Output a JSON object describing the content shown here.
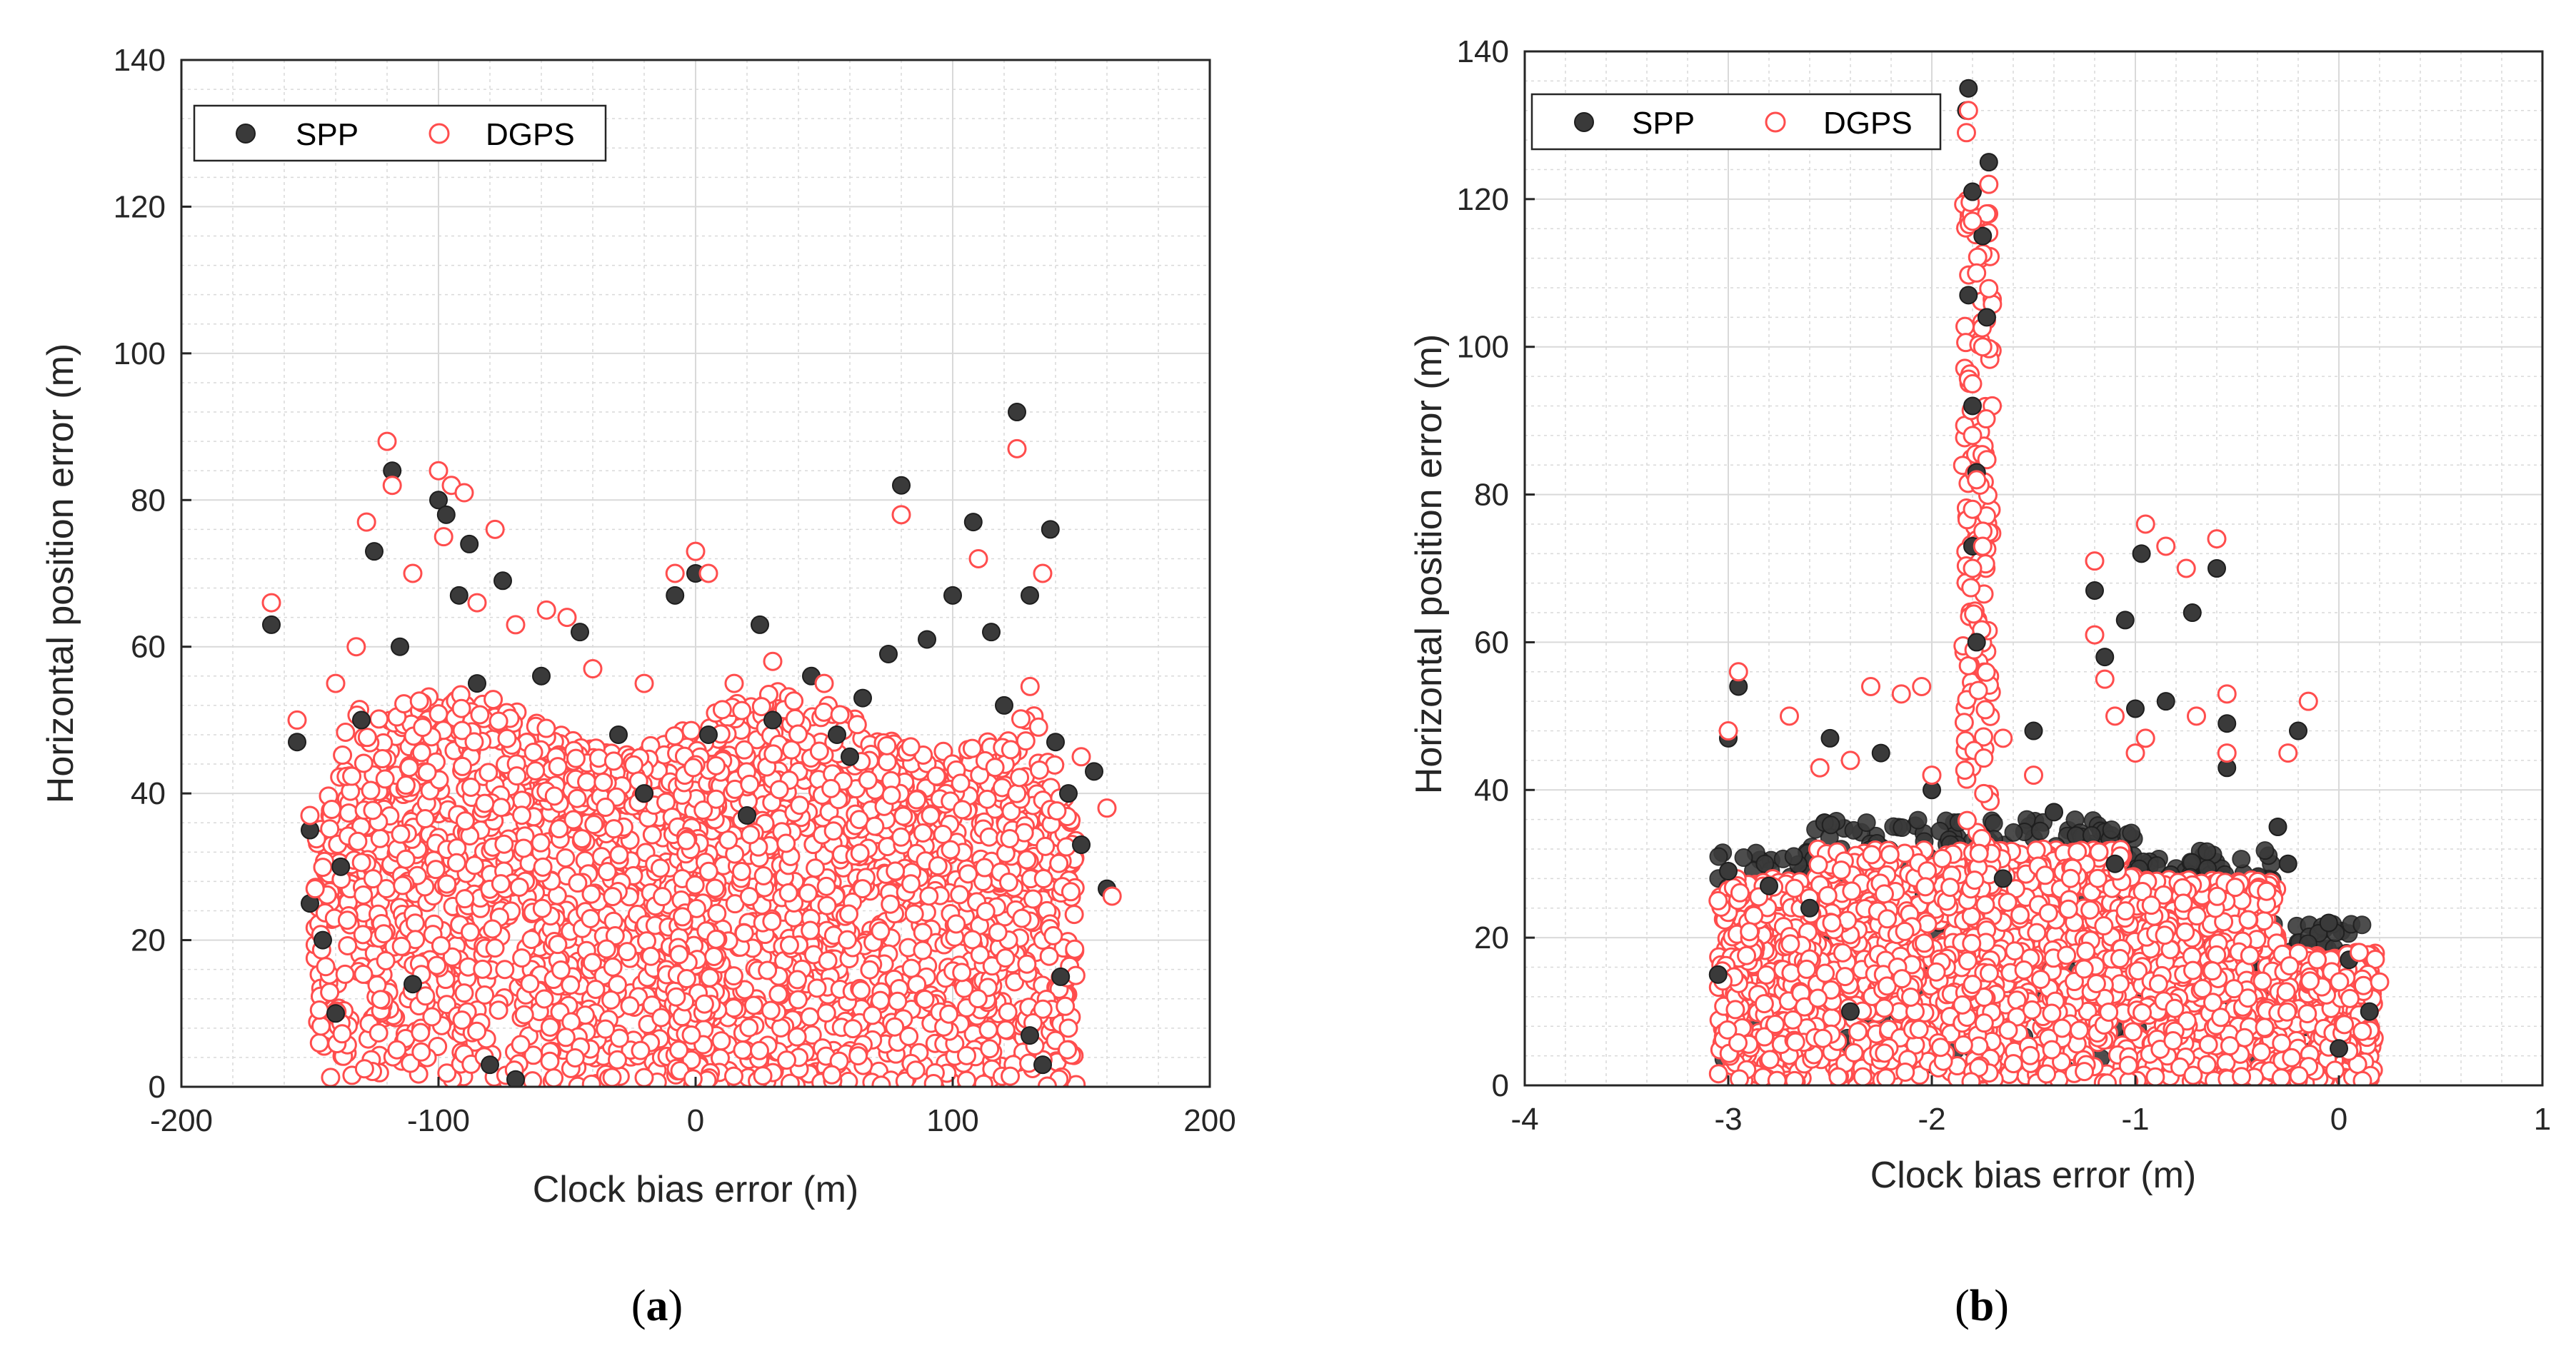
{
  "colors": {
    "spp_fill": "#3a3a3a",
    "spp_edge": "#1e1e1e",
    "dgps_edge": "#ff4d4d",
    "dgps_fill": "#ffffff",
    "grid": "#d9d9d9",
    "axis": "#262626"
  },
  "chart_data": [
    {
      "type": "scatter",
      "panel_label": "a",
      "title": "",
      "xlabel": "Clock bias error (m)",
      "ylabel": "Horizontal position error (m)",
      "xlim": [
        -200,
        200
      ],
      "ylim": [
        0,
        140
      ],
      "xticks": [
        -200,
        -100,
        0,
        100,
        200
      ],
      "yticks": [
        0,
        20,
        40,
        60,
        80,
        100,
        120,
        140
      ],
      "xtick_labels": [
        "-200",
        "-100",
        "0",
        "100",
        "200"
      ],
      "ytick_labels": [
        "0",
        "20",
        "40",
        "60",
        "80",
        "100",
        "120",
        "140"
      ],
      "grid": true,
      "legend": {
        "placement": "top-left",
        "entries": [
          "SPP",
          "DGPS"
        ]
      },
      "series": [
        {
          "name": "SPP",
          "marker": "filled-circle",
          "points": [
            [
              -165,
              63
            ],
            [
              -155,
              47
            ],
            [
              -150,
              35
            ],
            [
              -145,
              20
            ],
            [
              -138,
              30
            ],
            [
              -125,
              73
            ],
            [
              -118,
              84
            ],
            [
              -115,
              60
            ],
            [
              -110,
              14
            ],
            [
              -100,
              80
            ],
            [
              -97,
              78
            ],
            [
              -92,
              67
            ],
            [
              -88,
              74
            ],
            [
              -85,
              55
            ],
            [
              -80,
              3
            ],
            [
              -75,
              69
            ],
            [
              -70,
              1
            ],
            [
              -60,
              56
            ],
            [
              -45,
              62
            ],
            [
              -30,
              48
            ],
            [
              -8,
              67
            ],
            [
              0,
              70
            ],
            [
              5,
              48
            ],
            [
              20,
              37
            ],
            [
              25,
              63
            ],
            [
              30,
              50
            ],
            [
              45,
              56
            ],
            [
              55,
              48
            ],
            [
              65,
              53
            ],
            [
              75,
              59
            ],
            [
              80,
              82
            ],
            [
              90,
              61
            ],
            [
              100,
              67
            ],
            [
              108,
              77
            ],
            [
              115,
              62
            ],
            [
              125,
              92
            ],
            [
              130,
              67
            ],
            [
              138,
              76
            ],
            [
              140,
              47
            ],
            [
              145,
              40
            ],
            [
              150,
              33
            ],
            [
              155,
              43
            ],
            [
              160,
              27
            ],
            [
              142,
              15
            ],
            [
              135,
              3
            ],
            [
              130,
              7
            ],
            [
              -150,
              25
            ],
            [
              -140,
              10
            ],
            [
              -20,
              40
            ],
            [
              60,
              45
            ],
            [
              120,
              52
            ],
            [
              -130,
              50
            ]
          ]
        },
        {
          "name": "DGPS",
          "marker": "open-circle",
          "points": [
            [
              -165,
              66
            ],
            [
              -155,
              50
            ],
            [
              -150,
              37
            ],
            [
              -148,
              27
            ],
            [
              -140,
              55
            ],
            [
              -132,
              60
            ],
            [
              -128,
              77
            ],
            [
              -120,
              88
            ],
            [
              -118,
              82
            ],
            [
              -110,
              70
            ],
            [
              -100,
              84
            ],
            [
              -98,
              75
            ],
            [
              -95,
              82
            ],
            [
              -90,
              81
            ],
            [
              -85,
              66
            ],
            [
              -78,
              76
            ],
            [
              -70,
              63
            ],
            [
              -58,
              65
            ],
            [
              -50,
              64
            ],
            [
              -40,
              57
            ],
            [
              -20,
              55
            ],
            [
              -8,
              70
            ],
            [
              0,
              73
            ],
            [
              5,
              70
            ],
            [
              15,
              55
            ],
            [
              30,
              58
            ],
            [
              50,
              55
            ],
            [
              80,
              78
            ],
            [
              110,
              72
            ],
            [
              125,
              87
            ],
            [
              135,
              70
            ],
            [
              150,
              45
            ],
            [
              160,
              38
            ],
            [
              162,
              26
            ],
            [
              145,
              8
            ]
          ],
          "bulk_cloud": {
            "x_range": [
              -148,
              148
            ],
            "y_range": [
              0,
              60
            ]
          }
        }
      ]
    },
    {
      "type": "scatter",
      "panel_label": "b",
      "title": "",
      "xlabel": "Clock bias error (m)",
      "ylabel": "Horizontal position error (m)",
      "xlim": [
        -4,
        1
      ],
      "ylim": [
        0,
        140
      ],
      "xticks": [
        -4,
        -3,
        -2,
        -1,
        0,
        1
      ],
      "yticks": [
        0,
        20,
        40,
        60,
        80,
        100,
        120,
        140
      ],
      "xtick_labels": [
        "-4",
        "-3",
        "-2",
        "-1",
        "0",
        "1"
      ],
      "ytick_labels": [
        "0",
        "20",
        "40",
        "60",
        "80",
        "100",
        "120",
        "140"
      ],
      "grid": true,
      "legend": {
        "placement": "top-left",
        "entries": [
          "SPP",
          "DGPS"
        ]
      },
      "series": [
        {
          "name": "SPP",
          "marker": "filled-circle",
          "points": [
            [
              -1.82,
              135
            ],
            [
              -1.83,
              132
            ],
            [
              -1.72,
              125
            ],
            [
              -1.8,
              121
            ],
            [
              -1.75,
              115
            ],
            [
              -1.82,
              107
            ],
            [
              -1.73,
              104
            ],
            [
              -1.8,
              92
            ],
            [
              -1.78,
              83
            ],
            [
              -1.8,
              73
            ],
            [
              -1.78,
              60
            ],
            [
              -1.2,
              67
            ],
            [
              -1.05,
              63
            ],
            [
              -0.97,
              72
            ],
            [
              -0.72,
              64
            ],
            [
              -0.6,
              70
            ],
            [
              -0.55,
              49
            ],
            [
              -0.55,
              43
            ],
            [
              -0.2,
              48
            ],
            [
              -0.05,
              22
            ],
            [
              0.05,
              17
            ],
            [
              0.15,
              10
            ],
            [
              -2.95,
              54
            ],
            [
              -3.0,
              47
            ],
            [
              -2.5,
              47
            ],
            [
              -2.25,
              45
            ],
            [
              -1.5,
              48
            ],
            [
              -1.15,
              58
            ],
            [
              -1.0,
              51
            ],
            [
              -0.85,
              52
            ],
            [
              -2.0,
              40
            ],
            [
              -1.4,
              37
            ],
            [
              -1.1,
              30
            ],
            [
              -2.8,
              27
            ],
            [
              -3.0,
              29
            ],
            [
              -2.6,
              24
            ],
            [
              -0.3,
              35
            ],
            [
              -0.25,
              30
            ],
            [
              -0.0,
              5
            ],
            [
              -3.05,
              15
            ],
            [
              -1.65,
              28
            ],
            [
              -2.4,
              10
            ]
          ],
          "bulk_cloud": {
            "x_range": [
              -3.05,
              0.15
            ],
            "y_range": [
              0,
              35
            ]
          }
        },
        {
          "name": "DGPS",
          "marker": "open-circle",
          "points": [
            [
              -1.82,
              132
            ],
            [
              -1.83,
              129
            ],
            [
              -1.72,
              122
            ],
            [
              -1.73,
              118
            ],
            [
              -1.8,
              117
            ],
            [
              -1.78,
              110
            ],
            [
              -1.75,
              100
            ],
            [
              -1.8,
              95
            ],
            [
              -1.8,
              88
            ],
            [
              -1.78,
              82
            ],
            [
              -1.8,
              78
            ],
            [
              -1.75,
              73
            ],
            [
              -1.8,
              70
            ],
            [
              -1.2,
              71
            ],
            [
              -0.95,
              76
            ],
            [
              -0.85,
              73
            ],
            [
              -0.75,
              70
            ],
            [
              -0.6,
              74
            ],
            [
              -0.55,
              53
            ],
            [
              -0.55,
              45
            ],
            [
              -0.15,
              52
            ],
            [
              -2.95,
              56
            ],
            [
              -2.3,
              54
            ],
            [
              -2.15,
              53
            ],
            [
              -2.05,
              54
            ],
            [
              -1.65,
              47
            ],
            [
              -1.5,
              42
            ],
            [
              -1.2,
              61
            ],
            [
              -1.15,
              55
            ],
            [
              -1.1,
              50
            ],
            [
              -0.7,
              50
            ],
            [
              -0.95,
              47
            ],
            [
              -0.25,
              45
            ],
            [
              -1.0,
              45
            ],
            [
              -3.0,
              48
            ],
            [
              -2.7,
              50
            ],
            [
              -2.55,
              43
            ],
            [
              -2.4,
              44
            ],
            [
              -2.0,
              42
            ],
            [
              0.1,
              18
            ],
            [
              0.2,
              14
            ],
            [
              -3.05,
              25
            ]
          ],
          "spike": {
            "x_range": [
              -1.85,
              -1.7
            ],
            "y_range": [
              0,
              120
            ]
          },
          "bulk_cloud": {
            "x_range": [
              -3.05,
              0.18
            ],
            "y_range": [
              0,
              33
            ]
          }
        }
      ]
    }
  ]
}
